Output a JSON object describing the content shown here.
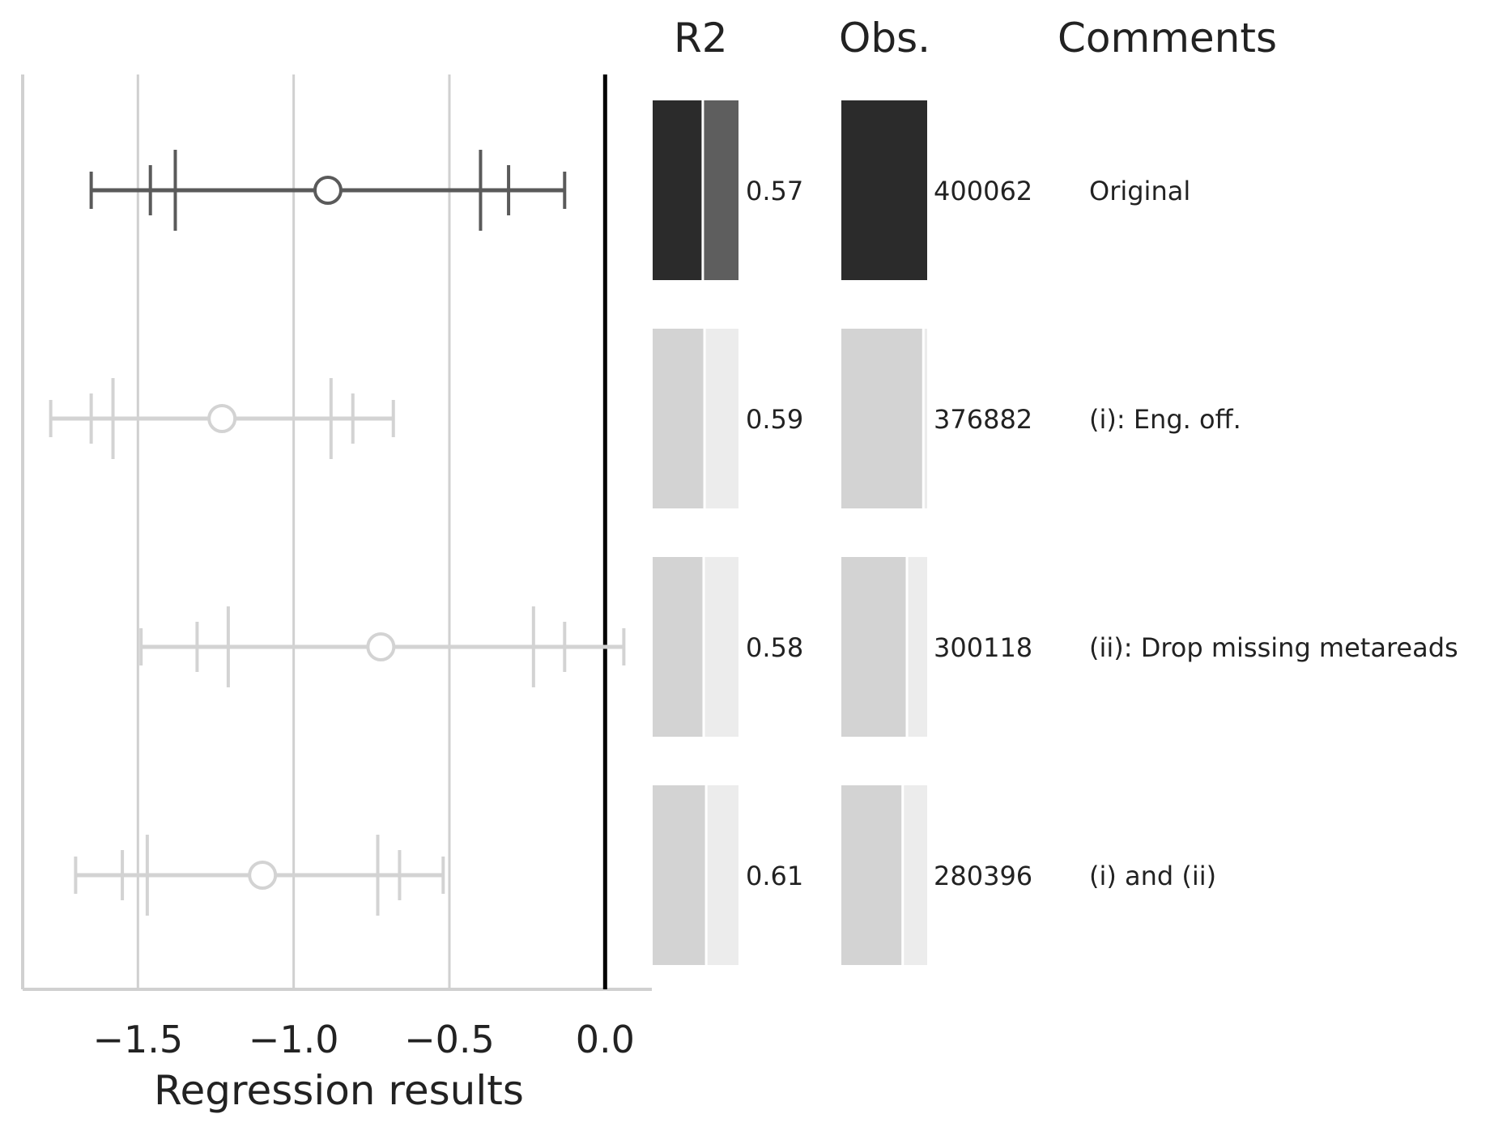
{
  "chart_data": {
    "type": "forest",
    "xlabel": "Regression results",
    "xlim": [
      -1.87,
      0.15
    ],
    "xticks": [
      -1.5,
      -1.0,
      -0.5,
      0.0
    ],
    "xtick_labels": [
      "−1.5",
      "−1.0",
      "−0.5",
      "0.0"
    ],
    "grid": "vertical",
    "reference_line": 0.0,
    "column_headers": {
      "r2": "R2",
      "obs": "Obs.",
      "comments": "Comments"
    },
    "rows": [
      {
        "estimate": -0.89,
        "ci90": [
          -1.38,
          -0.4
        ],
        "ci95": [
          -1.46,
          -0.31
        ],
        "ci99": [
          -1.65,
          -0.13
        ],
        "r2": 0.57,
        "r2_label": "0.57",
        "obs": 400062,
        "obs_label": "400062",
        "comment": "Original",
        "highlight": true
      },
      {
        "estimate": -1.23,
        "ci90": [
          -1.58,
          -0.88
        ],
        "ci95": [
          -1.65,
          -0.81
        ],
        "ci99": [
          -1.78,
          -0.68
        ],
        "r2": 0.59,
        "r2_label": "0.59",
        "obs": 376882,
        "obs_label": "376882",
        "comment": "(i): Eng. off.",
        "highlight": false
      },
      {
        "estimate": -0.72,
        "ci90": [
          -1.21,
          -0.23
        ],
        "ci95": [
          -1.31,
          -0.13
        ],
        "ci99": [
          -1.49,
          0.06
        ],
        "r2": 0.58,
        "r2_label": "0.58",
        "obs": 300118,
        "obs_label": "300118",
        "comment": "(ii): Drop missing metareads",
        "highlight": false
      },
      {
        "estimate": -1.1,
        "ci90": [
          -1.47,
          -0.73
        ],
        "ci95": [
          -1.55,
          -0.66
        ],
        "ci99": [
          -1.7,
          -0.52
        ],
        "r2": 0.61,
        "r2_label": "0.61",
        "obs": 280396,
        "obs_label": "280396",
        "comment": "(i) and (ii)",
        "highlight": false
      }
    ],
    "obs_max": 400062
  },
  "colors": {
    "highlight_line": "#5a5a5a",
    "muted_line": "#d3d3d3",
    "highlight_bar": "#2b2b2b",
    "highlight_bar_rest": "#5e5e5e",
    "muted_bar": "#d3d3d3",
    "muted_bar_rest": "#ececec",
    "grid": "#d0d0d0",
    "zero_line": "#000000",
    "text": "#222222"
  }
}
